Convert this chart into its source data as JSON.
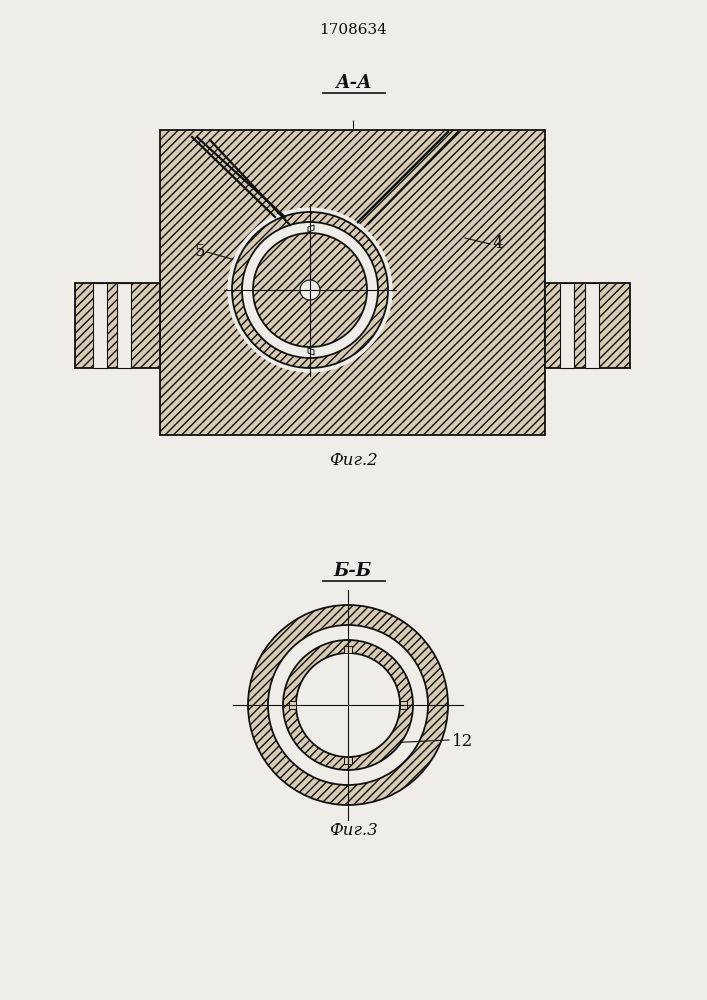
{
  "title": "1708634",
  "fig1_label": "А-А",
  "fig2_label": "Б-Б",
  "fig1_caption": "Фиг.2",
  "fig2_caption": "Фиг.3",
  "label_4": "4",
  "label_5": "5",
  "label_12": "12",
  "bg_color": "#f0ede8",
  "hatch_color": "#333333",
  "line_color": "#111111"
}
